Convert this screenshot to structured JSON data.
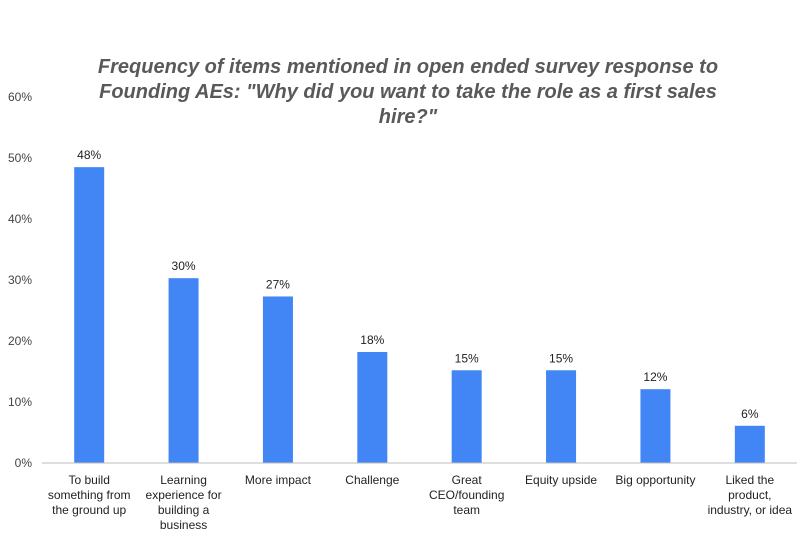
{
  "chart_data": {
    "type": "bar",
    "title_lines": [
      "Frequency of items mentioned in open ended survey response to",
      "Founding AEs: \"Why did you want to take the role as a first sales",
      "hire?\""
    ],
    "categories": [
      [
        "To build",
        "something from",
        "the ground up"
      ],
      [
        "Learning",
        "experience for",
        "building a",
        "business"
      ],
      [
        "More impact"
      ],
      [
        "Challenge"
      ],
      [
        "Great",
        "CEO/founding",
        "team"
      ],
      [
        "Equity upside"
      ],
      [
        "Big opportunity"
      ],
      [
        "Liked the",
        "product,",
        "industry, or idea"
      ]
    ],
    "values": [
      48.5,
      30.3,
      27.3,
      18.2,
      15.2,
      15.2,
      12.1,
      6.1
    ],
    "data_labels": [
      "48%",
      "30%",
      "27%",
      "18%",
      "15%",
      "15%",
      "12%",
      "6%"
    ],
    "y_ticks": [
      0,
      10,
      20,
      30,
      40,
      50,
      60
    ],
    "y_tick_labels": [
      "0%",
      "10%",
      "20%",
      "30%",
      "40%",
      "50%",
      "60%"
    ],
    "ylim": [
      0,
      60
    ],
    "xlabel": "",
    "ylabel": "",
    "grid": false,
    "bar_color": "#4285f4",
    "axis_color": "#bdbdbd"
  }
}
